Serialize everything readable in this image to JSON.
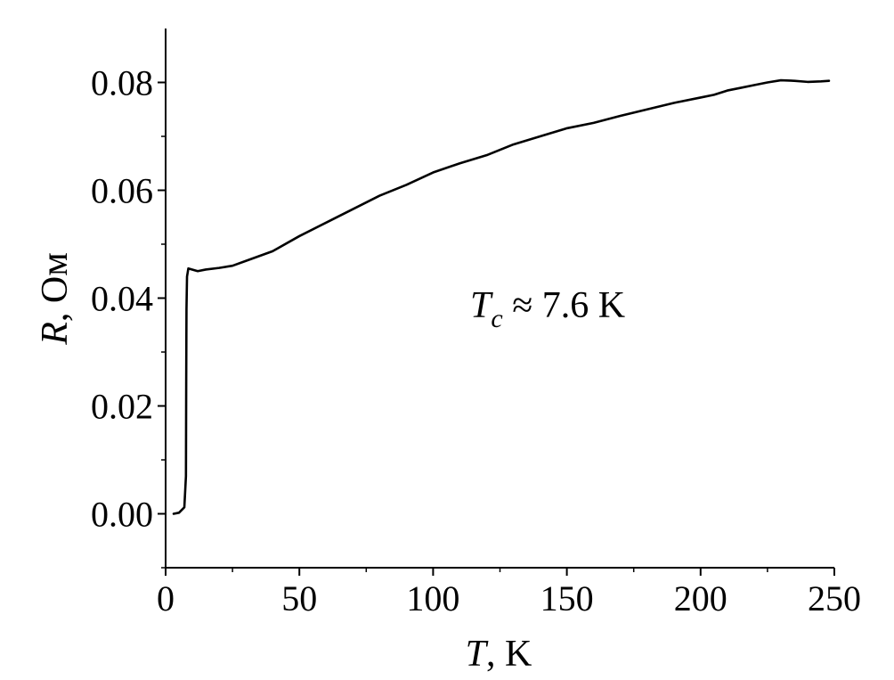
{
  "chart_data": {
    "type": "line",
    "xlabel": {
      "var": "T",
      "unit": ", K"
    },
    "ylabel": {
      "var": "R",
      "unit": ", Ом"
    },
    "xlim": [
      0,
      250
    ],
    "ylim": [
      -0.01,
      0.09
    ],
    "xticks": [
      0,
      50,
      100,
      150,
      200,
      250
    ],
    "xtick_labels": [
      "0",
      "50",
      "100",
      "150",
      "200",
      "250"
    ],
    "xminor": [
      25,
      75,
      125,
      175,
      225
    ],
    "yticks": [
      0.0,
      0.02,
      0.04,
      0.06,
      0.08
    ],
    "ytick_labels": [
      "0.00",
      "0.02",
      "0.04",
      "0.06",
      "0.08"
    ],
    "yminor": [
      -0.01,
      0.01,
      0.03,
      0.05,
      0.07
    ],
    "grid": false,
    "line_color": "#000000",
    "annotation": {
      "var": "T",
      "sub": "c",
      "rest": " ≈ 7.6 K",
      "at": [
        142,
        0.0395
      ]
    },
    "series": [
      {
        "x": [
          3,
          5,
          7,
          7.6,
          7.7,
          7.8,
          8,
          8.5,
          12,
          15,
          20,
          25,
          30,
          40,
          50,
          60,
          70,
          80,
          90,
          100,
          110,
          120,
          130,
          140,
          150,
          160,
          170,
          180,
          190,
          200,
          205,
          210,
          215,
          220,
          225,
          230,
          235,
          240,
          245,
          248
        ],
        "y": [
          0.0,
          0.0002,
          0.0012,
          0.007,
          0.025,
          0.038,
          0.044,
          0.0455,
          0.045,
          0.0453,
          0.0456,
          0.046,
          0.0469,
          0.0487,
          0.0515,
          0.054,
          0.0565,
          0.059,
          0.061,
          0.0633,
          0.065,
          0.0665,
          0.0685,
          0.07,
          0.0715,
          0.0725,
          0.0738,
          0.075,
          0.0762,
          0.0772,
          0.0777,
          0.0785,
          0.079,
          0.0795,
          0.08,
          0.0804,
          0.0803,
          0.0801,
          0.0802,
          0.0803
        ]
      }
    ]
  }
}
